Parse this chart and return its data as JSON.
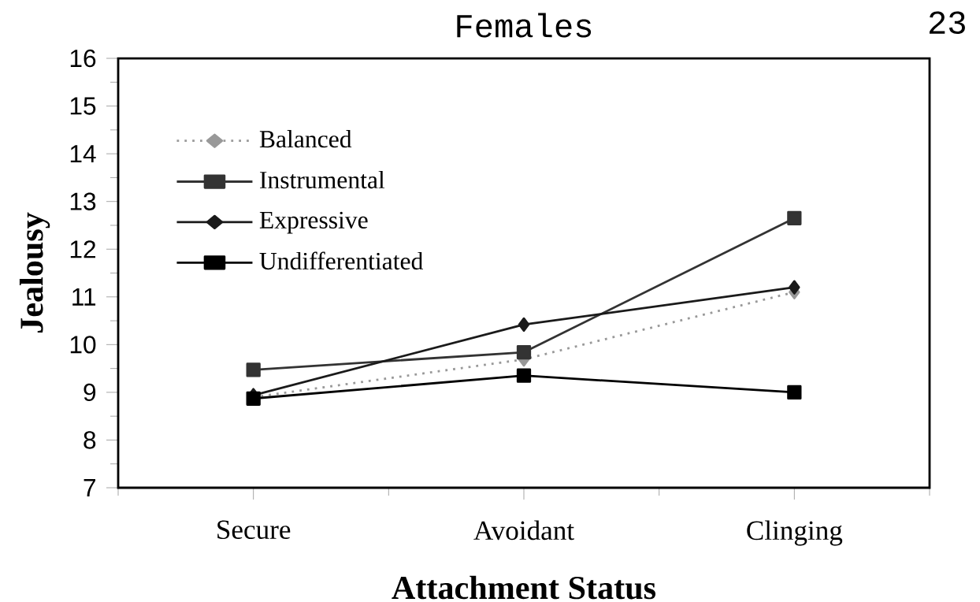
{
  "chart_data": {
    "type": "line",
    "title": "Females",
    "xlabel": "Attachment Status",
    "ylabel": "Jealousy",
    "annotations": [
      "23"
    ],
    "categories": [
      "Secure",
      "Avoidant",
      "Clinging"
    ],
    "series": [
      {
        "name": "Undifferentiated",
        "color": "#000000",
        "marker": "square",
        "line_style": "solid",
        "values": [
          8.87,
          9.35,
          9.0
        ]
      },
      {
        "name": "Expressive",
        "color": "#1a1a1a",
        "marker": "diamond",
        "line_style": "solid",
        "values": [
          8.94,
          10.42,
          11.2
        ]
      },
      {
        "name": "Instrumental",
        "color": "#333333",
        "marker": "square",
        "line_style": "solid",
        "values": [
          9.47,
          9.84,
          12.65
        ]
      },
      {
        "name": "Balanced",
        "color": "#999999",
        "marker": "diamond",
        "line_style": "dotted",
        "values": [
          8.9,
          9.69,
          11.1
        ]
      }
    ],
    "ylim": [
      7,
      16
    ],
    "yticks": [
      7,
      8,
      9,
      10,
      11,
      12,
      13,
      14,
      15,
      16
    ],
    "grid": false,
    "legend": "top left"
  }
}
